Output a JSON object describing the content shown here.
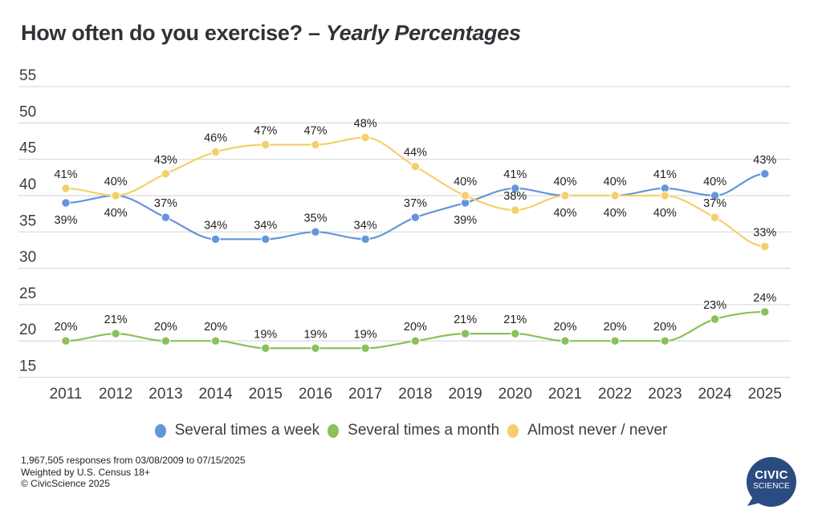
{
  "chart_data": {
    "type": "line",
    "title": "How often do you exercise?",
    "title_separator": " – ",
    "subtitle": "Yearly Percentages",
    "xlabel": "",
    "ylabel": "",
    "ylim": [
      15,
      55
    ],
    "yticks": [
      55,
      50,
      45,
      40,
      35,
      30,
      25,
      20,
      15
    ],
    "grid": true,
    "legend_position": "bottom",
    "categories": [
      "2011",
      "2012",
      "2013",
      "2014",
      "2015",
      "2016",
      "2017",
      "2018",
      "2019",
      "2020",
      "2021",
      "2022",
      "2023",
      "2024",
      "2025"
    ],
    "series": [
      {
        "name": "Several times a week",
        "color": "#6495dc",
        "values": [
          39,
          40,
          37,
          34,
          34,
          35,
          34,
          37,
          39,
          41,
          40,
          40,
          41,
          40,
          43
        ],
        "label_positions": [
          "below",
          "below",
          "above",
          "above",
          "above",
          "above",
          "above",
          "above",
          "below",
          "above",
          "below",
          "below",
          "above",
          "above",
          "above"
        ]
      },
      {
        "name": "Several times a month",
        "color": "#8bc05a",
        "values": [
          20,
          21,
          20,
          20,
          19,
          19,
          19,
          20,
          21,
          21,
          20,
          20,
          20,
          23,
          24
        ],
        "label_positions": [
          "above",
          "above",
          "above",
          "above",
          "above",
          "above",
          "above",
          "above",
          "above",
          "above",
          "above",
          "above",
          "above",
          "above",
          "above"
        ]
      },
      {
        "name": "Almost never / never",
        "color": "#f5cf6a",
        "values": [
          41,
          40,
          43,
          46,
          47,
          47,
          48,
          44,
          40,
          38,
          40,
          40,
          40,
          37,
          33
        ],
        "label_positions": [
          "above",
          "above",
          "above",
          "above",
          "above",
          "above",
          "above",
          "above",
          "above",
          "above",
          "above",
          "above",
          "below",
          "above",
          "above"
        ]
      }
    ]
  },
  "footer": {
    "line1": "1,967,505 responses from 03/08/2009 to 07/15/2025",
    "line2": "Weighted by U.S. Census 18+",
    "line3": "© CivicScience 2025"
  },
  "logo": {
    "line1": "CIVIC",
    "line2": "SCIENCE",
    "color": "#2a4c80"
  }
}
